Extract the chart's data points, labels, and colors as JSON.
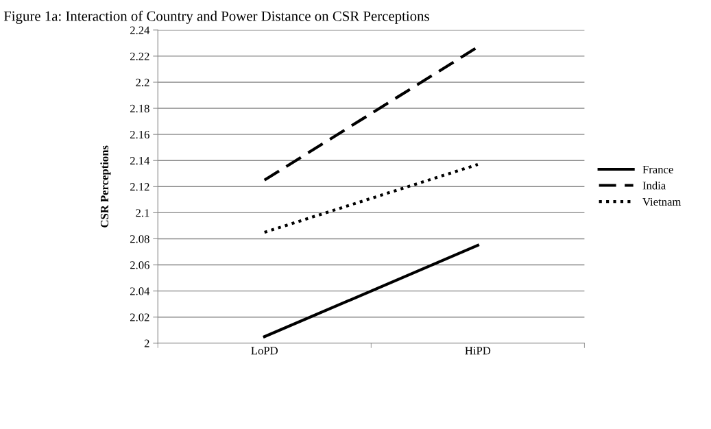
{
  "chart_data": {
    "type": "line",
    "title": "Figure 1a: Interaction of Country and Power Distance on CSR Perceptions",
    "ylabel": "CSR Perceptions",
    "categories": [
      "LoPD",
      "HiPD"
    ],
    "series": [
      {
        "name": "France",
        "color": "#000000",
        "line_style": "solid",
        "values": [
          2.005,
          2.075
        ]
      },
      {
        "name": "India",
        "color": "#000000",
        "line_style": "dashed",
        "values": [
          2.125,
          2.227
        ]
      },
      {
        "name": "Vietnam",
        "color": "#000000",
        "line_style": "dotted",
        "values": [
          2.085,
          2.137
        ]
      }
    ],
    "ylim": [
      2,
      2.24
    ],
    "yticks": [
      2,
      2.02,
      2.04,
      2.06,
      2.08,
      2.1,
      2.12,
      2.14,
      2.16,
      2.18,
      2.2,
      2.22,
      2.24
    ],
    "grid": "y",
    "legend": "right",
    "marker": "none"
  }
}
